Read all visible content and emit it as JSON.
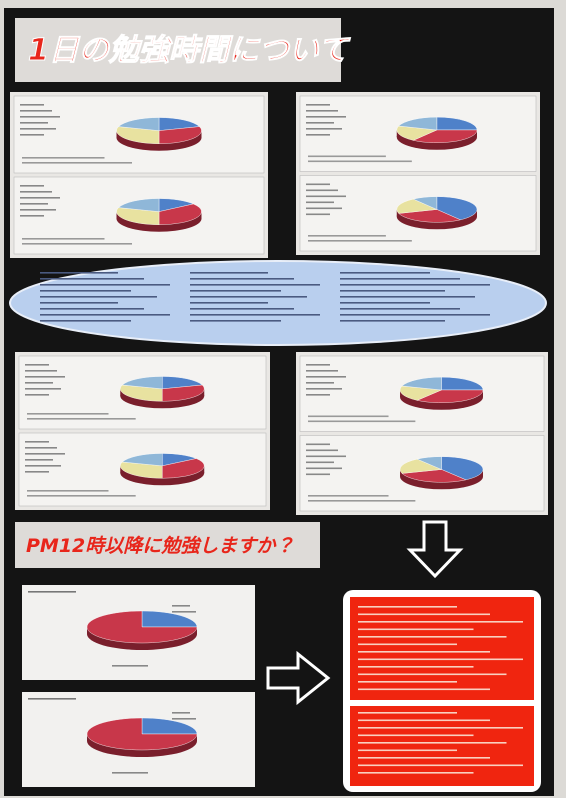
{
  "header": {
    "title": "1日の勉強時間について"
  },
  "section": {
    "title": "PM12時以降に勉強しますか？"
  }
}
